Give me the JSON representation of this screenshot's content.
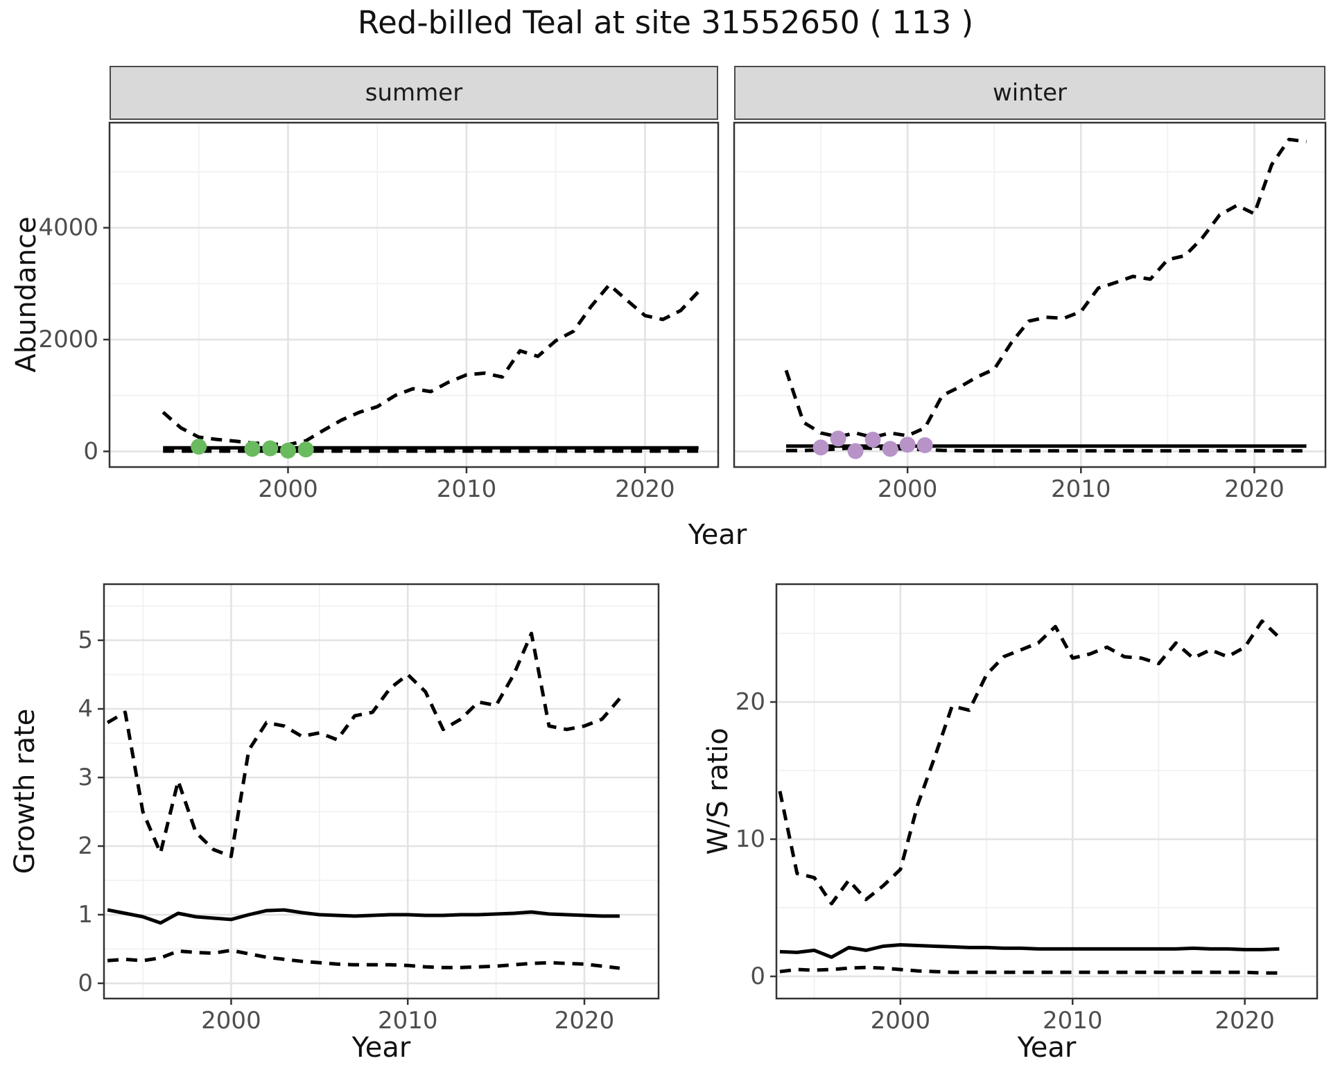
{
  "title": "Red-billed Teal at site 31552650 ( 113 )",
  "colors": {
    "summer_points": "#6aba5f",
    "winter_points": "#b793c8",
    "line": "#000000",
    "strip_bg": "#d9d9d9",
    "grid_major": "#e3e3e3",
    "grid_minor": "#f0f0f0",
    "panel_border": "#333333",
    "tick_label": "#4d4d4d"
  },
  "chart_data": [
    {
      "id": "abundance_summer",
      "type": "line",
      "facet_label": "summer",
      "xlabel": "Year",
      "ylabel": "Abundance",
      "x": [
        1993,
        1994,
        1995,
        1996,
        1997,
        1998,
        1999,
        2000,
        2001,
        2002,
        2003,
        2004,
        2005,
        2006,
        2007,
        2008,
        2009,
        2010,
        2011,
        2012,
        2013,
        2014,
        2015,
        2016,
        2017,
        2018,
        2019,
        2020,
        2021,
        2022,
        2023
      ],
      "series": [
        {
          "name": "upper_ci",
          "line": "dashed",
          "values": [
            700,
            420,
            255,
            215,
            185,
            150,
            130,
            120,
            190,
            380,
            560,
            700,
            800,
            1000,
            1120,
            1070,
            1240,
            1370,
            1400,
            1330,
            1800,
            1700,
            1980,
            2150,
            2600,
            2980,
            2700,
            2430,
            2360,
            2520,
            2860
          ]
        },
        {
          "name": "median",
          "line": "solid",
          "values": [
            65,
            65,
            65,
            65,
            65,
            65,
            65,
            65,
            65,
            65,
            65,
            65,
            65,
            65,
            65,
            65,
            65,
            65,
            65,
            65,
            65,
            65,
            65,
            65,
            65,
            65,
            65,
            65,
            65,
            65,
            65
          ]
        },
        {
          "name": "lower_ci",
          "line": "dashed",
          "values": [
            5,
            5,
            5,
            5,
            5,
            5,
            5,
            5,
            5,
            5,
            5,
            5,
            5,
            5,
            5,
            5,
            5,
            5,
            5,
            5,
            5,
            5,
            5,
            5,
            5,
            5,
            5,
            5,
            5,
            5,
            5
          ]
        }
      ],
      "points": {
        "name": "observed-count",
        "color_key": "summer_points",
        "x": [
          1995,
          1998,
          1999,
          2000,
          2001
        ],
        "y": [
          85,
          45,
          55,
          15,
          35
        ]
      },
      "xticks": [
        2000,
        2010,
        2020
      ],
      "xtick_labels": [
        "2000",
        "2010",
        "2020"
      ],
      "yticks": [
        0,
        2000,
        4000
      ],
      "ytick_labels": [
        "0",
        "2000",
        "4000"
      ],
      "xminor": [
        1995,
        2005,
        2015
      ],
      "yminor": [
        1000,
        3000,
        5000
      ],
      "xlim": [
        1990.0,
        2024.1
      ],
      "ylim": [
        -280,
        5880
      ],
      "grid": "on",
      "legend": "none"
    },
    {
      "id": "abundance_winter",
      "type": "line",
      "facet_label": "winter",
      "xlabel": "Year",
      "ylabel": "Abundance",
      "x": [
        1993,
        1994,
        1995,
        1996,
        1997,
        1998,
        1999,
        2000,
        2001,
        2002,
        2003,
        2004,
        2005,
        2006,
        2007,
        2008,
        2009,
        2010,
        2011,
        2012,
        2013,
        2014,
        2015,
        2016,
        2017,
        2018,
        2019,
        2020,
        2021,
        2022,
        2023
      ],
      "series": [
        {
          "name": "upper_ci",
          "line": "dashed",
          "values": [
            1450,
            520,
            330,
            260,
            330,
            250,
            330,
            280,
            420,
            1000,
            1150,
            1330,
            1470,
            1950,
            2330,
            2400,
            2380,
            2500,
            2920,
            3020,
            3130,
            3080,
            3430,
            3500,
            3820,
            4230,
            4400,
            4250,
            5130,
            5580,
            5540
          ]
        },
        {
          "name": "median",
          "line": "solid",
          "values": [
            95,
            95,
            95,
            95,
            95,
            95,
            95,
            95,
            95,
            95,
            95,
            95,
            95,
            95,
            95,
            95,
            95,
            95,
            95,
            95,
            95,
            95,
            95,
            95,
            95,
            95,
            95,
            95,
            95,
            95,
            95
          ]
        },
        {
          "name": "lower_ci",
          "line": "dashed",
          "values": [
            15,
            15,
            25,
            45,
            65,
            55,
            50,
            45,
            30,
            18,
            12,
            10,
            10,
            10,
            10,
            10,
            10,
            10,
            10,
            10,
            10,
            10,
            10,
            10,
            10,
            10,
            10,
            10,
            10,
            10,
            10
          ]
        }
      ],
      "points": {
        "name": "observed-count",
        "color_key": "winter_points",
        "x": [
          1995,
          1996,
          1997,
          1998,
          1999,
          2000,
          2001
        ],
        "y": [
          70,
          230,
          5,
          210,
          45,
          120,
          110
        ]
      },
      "xticks": [
        2000,
        2010,
        2020
      ],
      "xtick_labels": [
        "2000",
        "2010",
        "2020"
      ],
      "yticks": [
        0,
        2000,
        4000
      ],
      "ytick_labels": [],
      "xminor": [
        1995,
        2005,
        2015
      ],
      "yminor": [
        1000,
        3000,
        5000
      ],
      "xlim": [
        1990.0,
        2024.1
      ],
      "ylim": [
        -280,
        5880
      ],
      "grid": "on",
      "legend": "none"
    },
    {
      "id": "growth_rate",
      "type": "line",
      "facet_label": "",
      "xlabel": "Year",
      "ylabel": "Growth rate",
      "x": [
        1993,
        1994,
        1995,
        1996,
        1997,
        1998,
        1999,
        2000,
        2001,
        2002,
        2003,
        2004,
        2005,
        2006,
        2007,
        2008,
        2009,
        2010,
        2011,
        2012,
        2013,
        2014,
        2015,
        2016,
        2017,
        2018,
        2019,
        2020,
        2021,
        2022
      ],
      "series": [
        {
          "name": "upper_ci",
          "line": "dashed",
          "values": [
            3.8,
            3.95,
            2.5,
            1.9,
            2.95,
            2.2,
            1.95,
            1.85,
            3.4,
            3.8,
            3.75,
            3.6,
            3.65,
            3.55,
            3.9,
            3.95,
            4.3,
            4.5,
            4.25,
            3.7,
            3.85,
            4.1,
            4.05,
            4.5,
            5.1,
            3.75,
            3.7,
            3.75,
            3.85,
            4.15
          ]
        },
        {
          "name": "median",
          "line": "solid",
          "values": [
            1.07,
            1.02,
            0.97,
            0.88,
            1.02,
            0.97,
            0.95,
            0.93,
            1.0,
            1.06,
            1.07,
            1.03,
            1.0,
            0.99,
            0.98,
            0.99,
            1.0,
            1.0,
            0.99,
            0.99,
            1.0,
            1.0,
            1.01,
            1.02,
            1.04,
            1.01,
            1.0,
            0.99,
            0.98,
            0.98
          ]
        },
        {
          "name": "lower_ci",
          "line": "dashed",
          "values": [
            0.33,
            0.35,
            0.33,
            0.37,
            0.47,
            0.45,
            0.44,
            0.48,
            0.43,
            0.38,
            0.35,
            0.32,
            0.3,
            0.28,
            0.27,
            0.27,
            0.27,
            0.26,
            0.24,
            0.23,
            0.23,
            0.24,
            0.25,
            0.27,
            0.29,
            0.3,
            0.29,
            0.28,
            0.25,
            0.22
          ]
        }
      ],
      "points": null,
      "xticks": [
        2000,
        2010,
        2020
      ],
      "xtick_labels": [
        "2000",
        "2010",
        "2020"
      ],
      "yticks": [
        0,
        1,
        2,
        3,
        4,
        5
      ],
      "ytick_labels": [
        "0",
        "1",
        "2",
        "3",
        "4",
        "5"
      ],
      "xminor": [
        1995,
        2005,
        2015
      ],
      "yminor": [
        0.5,
        1.5,
        2.5,
        3.5,
        4.5,
        5.5
      ],
      "xlim": [
        1992.8,
        2024.2
      ],
      "ylim": [
        -0.222,
        5.818
      ],
      "grid": "on",
      "legend": "none"
    },
    {
      "id": "ws_ratio",
      "type": "line",
      "facet_label": "",
      "xlabel": "Year",
      "ylabel": "W/S ratio",
      "x": [
        1993,
        1994,
        1995,
        1996,
        1997,
        1998,
        1999,
        2000,
        2001,
        2002,
        2003,
        2004,
        2005,
        2006,
        2007,
        2008,
        2009,
        2010,
        2011,
        2012,
        2013,
        2014,
        2015,
        2016,
        2017,
        2018,
        2019,
        2020,
        2021,
        2022
      ],
      "series": [
        {
          "name": "upper_ci",
          "line": "dashed",
          "values": [
            13.5,
            7.5,
            7.2,
            5.3,
            7.0,
            5.6,
            6.6,
            7.8,
            12.5,
            16.0,
            19.7,
            19.4,
            22.0,
            23.3,
            23.8,
            24.3,
            25.5,
            23.2,
            23.5,
            24.0,
            23.3,
            23.2,
            22.8,
            24.3,
            23.2,
            23.8,
            23.3,
            24.0,
            25.9,
            24.7
          ]
        },
        {
          "name": "median",
          "line": "solid",
          "values": [
            1.8,
            1.75,
            1.9,
            1.4,
            2.1,
            1.9,
            2.2,
            2.3,
            2.25,
            2.2,
            2.15,
            2.1,
            2.1,
            2.05,
            2.05,
            2.0,
            2.0,
            2.0,
            2.0,
            2.0,
            2.0,
            2.0,
            2.0,
            2.0,
            2.05,
            2.0,
            2.0,
            1.95,
            1.95,
            2.0
          ]
        },
        {
          "name": "lower_ci",
          "line": "dashed",
          "values": [
            0.35,
            0.5,
            0.45,
            0.5,
            0.6,
            0.65,
            0.6,
            0.5,
            0.4,
            0.35,
            0.3,
            0.3,
            0.3,
            0.3,
            0.3,
            0.3,
            0.3,
            0.3,
            0.3,
            0.3,
            0.3,
            0.3,
            0.3,
            0.3,
            0.3,
            0.3,
            0.3,
            0.3,
            0.25,
            0.25
          ]
        }
      ],
      "points": null,
      "xticks": [
        2000,
        2010,
        2020
      ],
      "xtick_labels": [
        "2000",
        "2010",
        "2020"
      ],
      "yticks": [
        0,
        10,
        20
      ],
      "ytick_labels": [
        "0",
        "10",
        "20"
      ],
      "xminor": [
        1995,
        2005,
        2015
      ],
      "yminor": [
        5,
        15,
        25
      ],
      "xlim": [
        1992.8,
        2024.2
      ],
      "ylim": [
        -1.616,
        28.59
      ],
      "grid": "on",
      "legend": "none"
    }
  ]
}
